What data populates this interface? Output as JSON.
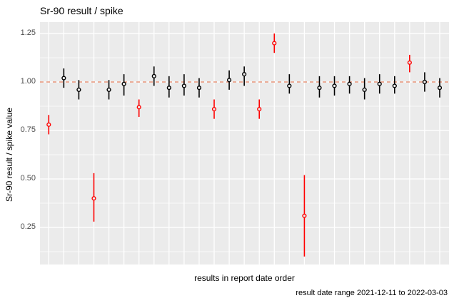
{
  "chart_data": {
    "type": "scatter",
    "title": "Sr-90 result / spike",
    "xlabel": "results in report date order",
    "ylabel": "Sr-90 result / spike value",
    "caption": "result date range 2021-12-11 to 2022-03-03",
    "y_ticks": [
      1.25,
      1.0,
      0.75,
      0.5,
      0.25
    ],
    "y_tick_labels": [
      "1.25",
      "1.00",
      "0.75",
      "0.50",
      "0.25"
    ],
    "y_minor_gridlines": [
      1.125,
      0.875,
      0.625,
      0.375,
      0.125
    ],
    "ylim": [
      0.06,
      1.31
    ],
    "x_axis_type": "discrete-index-no-labels",
    "n_points": 27,
    "reference_line_y": 1.0,
    "legend_position": "none",
    "grid": "white major+minor horizontal, white vertical per point, gray panel",
    "points": [
      {
        "i": 1,
        "y": 0.78,
        "lo": 0.73,
        "hi": 0.83,
        "flagged": true
      },
      {
        "i": 2,
        "y": 1.02,
        "lo": 0.97,
        "hi": 1.07,
        "flagged": false
      },
      {
        "i": 3,
        "y": 0.96,
        "lo": 0.91,
        "hi": 1.01,
        "flagged": false
      },
      {
        "i": 4,
        "y": 0.4,
        "lo": 0.28,
        "hi": 0.53,
        "flagged": true
      },
      {
        "i": 5,
        "y": 0.96,
        "lo": 0.91,
        "hi": 1.01,
        "flagged": false
      },
      {
        "i": 6,
        "y": 0.99,
        "lo": 0.93,
        "hi": 1.04,
        "flagged": false
      },
      {
        "i": 7,
        "y": 0.87,
        "lo": 0.82,
        "hi": 0.91,
        "flagged": true
      },
      {
        "i": 8,
        "y": 1.03,
        "lo": 0.98,
        "hi": 1.08,
        "flagged": false
      },
      {
        "i": 9,
        "y": 0.97,
        "lo": 0.92,
        "hi": 1.03,
        "flagged": false
      },
      {
        "i": 10,
        "y": 0.98,
        "lo": 0.93,
        "hi": 1.04,
        "flagged": false
      },
      {
        "i": 11,
        "y": 0.97,
        "lo": 0.92,
        "hi": 1.02,
        "flagged": false
      },
      {
        "i": 12,
        "y": 0.86,
        "lo": 0.81,
        "hi": 0.91,
        "flagged": true
      },
      {
        "i": 13,
        "y": 1.01,
        "lo": 0.96,
        "hi": 1.06,
        "flagged": false
      },
      {
        "i": 14,
        "y": 1.04,
        "lo": 0.98,
        "hi": 1.08,
        "flagged": false
      },
      {
        "i": 15,
        "y": 0.86,
        "lo": 0.81,
        "hi": 0.91,
        "flagged": true
      },
      {
        "i": 16,
        "y": 1.2,
        "lo": 1.15,
        "hi": 1.25,
        "flagged": true
      },
      {
        "i": 17,
        "y": 0.98,
        "lo": 0.94,
        "hi": 1.04,
        "flagged": false
      },
      {
        "i": 18,
        "y": 0.31,
        "lo": 0.1,
        "hi": 0.52,
        "flagged": true
      },
      {
        "i": 19,
        "y": 0.97,
        "lo": 0.92,
        "hi": 1.03,
        "flagged": false
      },
      {
        "i": 20,
        "y": 0.98,
        "lo": 0.93,
        "hi": 1.03,
        "flagged": false
      },
      {
        "i": 21,
        "y": 0.99,
        "lo": 0.94,
        "hi": 1.03,
        "flagged": false
      },
      {
        "i": 22,
        "y": 0.96,
        "lo": 0.91,
        "hi": 1.02,
        "flagged": false
      },
      {
        "i": 23,
        "y": 0.99,
        "lo": 0.94,
        "hi": 1.04,
        "flagged": false
      },
      {
        "i": 24,
        "y": 0.98,
        "lo": 0.94,
        "hi": 1.03,
        "flagged": false
      },
      {
        "i": 25,
        "y": 1.1,
        "lo": 1.05,
        "hi": 1.14,
        "flagged": true
      },
      {
        "i": 26,
        "y": 1.0,
        "lo": 0.95,
        "hi": 1.05,
        "flagged": false
      },
      {
        "i": 27,
        "y": 0.97,
        "lo": 0.92,
        "hi": 1.02,
        "flagged": false
      }
    ],
    "colors": {
      "point_normal": "#000000",
      "point_flagged": "#FF0000",
      "reference_line": "#E9967A",
      "panel_background": "#EBEBEB",
      "gridline": "#FFFFFF",
      "tick_label": "#4D4D4D"
    }
  }
}
